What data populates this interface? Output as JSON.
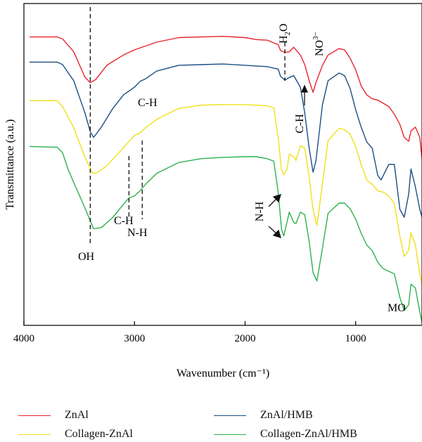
{
  "chart_data": {
    "type": "line",
    "title": "",
    "xlabel": "Wavenumber (cm⁻¹)",
    "ylabel": "Transmittance (a.u.)",
    "xlim": [
      4000,
      400
    ],
    "x_reversed": true,
    "x_ticks": [
      "4000",
      "3000",
      "2000",
      "1000"
    ],
    "y_ticks": [],
    "y_units": "arbitrary, curves offset vertically (0 = bottom of plot, 100 = top)",
    "series": [
      {
        "name": "ZnAl",
        "color": "#e8242b",
        "x": [
          3950,
          3700,
          3650,
          3550,
          3450,
          3400,
          3350,
          3250,
          3100,
          3000,
          2900,
          2800,
          2600,
          2400,
          2200,
          2000,
          1900,
          1800,
          1700,
          1680,
          1640,
          1600,
          1560,
          1500,
          1460,
          1420,
          1385,
          1360,
          1300,
          1250,
          1150,
          1100,
          1050,
          1000,
          950,
          900,
          850,
          800,
          750,
          700,
          650,
          600,
          560,
          520,
          500,
          460,
          420,
          400
        ],
        "y": [
          89.6,
          89.6,
          89,
          85,
          77.2,
          75.4,
          76.4,
          80.8,
          84,
          85.6,
          86.8,
          88,
          89.4,
          89.6,
          89.8,
          89.4,
          88.8,
          88.6,
          87.2,
          85.4,
          84.8,
          85,
          86.4,
          84,
          81,
          76,
          72.4,
          75.4,
          80.8,
          84,
          86,
          85.6,
          83,
          79.4,
          74.4,
          71.6,
          70.4,
          70,
          69,
          68,
          65.6,
          62.4,
          58.4,
          57.2,
          60.4,
          61.6,
          58.4,
          51.6
        ]
      },
      {
        "name": "ZnAl/HMB",
        "color": "#1a4f83",
        "x": [
          3950,
          3700,
          3650,
          3550,
          3450,
          3400,
          3370,
          3300,
          3200,
          3100,
          3000,
          2950,
          2900,
          2800,
          2600,
          2400,
          2200,
          2000,
          1900,
          1800,
          1700,
          1680,
          1640,
          1600,
          1560,
          1500,
          1460,
          1420,
          1385,
          1360,
          1300,
          1250,
          1150,
          1100,
          1050,
          1000,
          950,
          900,
          850,
          800,
          770,
          700,
          650,
          600,
          560,
          520,
          500,
          460,
          420,
          400
        ],
        "y": [
          81.8,
          81.8,
          81,
          76,
          66.2,
          60.2,
          58.4,
          61.6,
          67.2,
          71.6,
          74,
          75.8,
          76.6,
          79,
          80.8,
          81,
          81.2,
          80.8,
          80.6,
          80.4,
          79.6,
          77.4,
          76.2,
          77,
          77.6,
          74,
          66,
          55,
          47.6,
          51,
          68.6,
          76,
          78.4,
          77.6,
          73.6,
          67,
          61.6,
          57,
          55,
          46.6,
          45.2,
          50,
          50,
          36,
          33.6,
          40.8,
          48.6,
          43,
          36,
          33.6
        ]
      },
      {
        "name": "Collagen-ZnAl",
        "color": "#f0e018",
        "x": [
          3950,
          3750,
          3700,
          3650,
          3550,
          3450,
          3380,
          3350,
          3250,
          3100,
          3000,
          2950,
          2900,
          2800,
          2600,
          2400,
          2200,
          2000,
          1900,
          1800,
          1740,
          1700,
          1670,
          1650,
          1620,
          1600,
          1560,
          1540,
          1500,
          1460,
          1420,
          1385,
          1350,
          1300,
          1250,
          1150,
          1100,
          1050,
          1000,
          950,
          900,
          850,
          800,
          750,
          700,
          650,
          600,
          560,
          520,
          500,
          460,
          420,
          400
        ],
        "y": [
          69.8,
          69.8,
          69.8,
          68,
          61.4,
          52.4,
          47.4,
          47.2,
          49.6,
          55.2,
          59,
          59.8,
          61.4,
          64,
          67.4,
          68.4,
          68.6,
          68.6,
          68.4,
          68.2,
          67.6,
          58.2,
          48.2,
          46.8,
          48.6,
          53.2,
          52.4,
          51.2,
          55.8,
          55,
          46,
          36,
          31,
          44,
          57.4,
          61.2,
          60.8,
          59.4,
          55.6,
          50,
          45.2,
          43.8,
          41.8,
          41.4,
          40.2,
          37.8,
          27.6,
          21.4,
          23.4,
          28.8,
          25,
          16,
          13
        ]
      },
      {
        "name": "Collagen-ZnAl/HMB",
        "color": "#2db24a",
        "x": [
          3950,
          3750,
          3700,
          3650,
          3600,
          3550,
          3450,
          3370,
          3300,
          3200,
          3100,
          3050,
          3000,
          2950,
          2900,
          2800,
          2600,
          2400,
          2200,
          2000,
          1900,
          1800,
          1740,
          1700,
          1670,
          1650,
          1620,
          1600,
          1560,
          1540,
          1500,
          1460,
          1420,
          1385,
          1350,
          1300,
          1250,
          1150,
          1100,
          1050,
          1000,
          950,
          900,
          850,
          800,
          750,
          700,
          650,
          600,
          560,
          520,
          500,
          460,
          420,
          400
        ],
        "y": [
          55.6,
          55.4,
          55.4,
          53.6,
          48.4,
          44.4,
          36.6,
          30,
          30.4,
          33.4,
          37.6,
          39.6,
          40.2,
          41.8,
          43.8,
          47.2,
          50.6,
          51.8,
          52.2,
          52.4,
          52.4,
          51.8,
          51,
          41.2,
          29.8,
          27.8,
          32.2,
          35.2,
          32,
          31.6,
          35.2,
          34.4,
          26,
          16.4,
          13.8,
          24,
          34.8,
          38,
          38,
          36.2,
          33,
          28.6,
          25,
          23.2,
          19.6,
          17.6,
          16.8,
          16,
          8.6,
          4.6,
          6.4,
          12.8,
          11.6,
          4.2,
          0.8
        ]
      }
    ],
    "vertical_markers": [
      3400,
      3050,
      2930,
      1640
    ],
    "annotations": {
      "oh": "OH",
      "ch_zn": "C-H",
      "ch_col": "C-H",
      "nh_col": "N-H",
      "nh_arrow": "N-H",
      "ch_arrow": "C-H",
      "h2o_h": "H",
      "h2o_sub": "2",
      "h2o_o": "O",
      "no3": "NO",
      "no3_sup": "3−",
      "mo": "MO"
    },
    "legend_position": "bottom",
    "grid": false
  }
}
